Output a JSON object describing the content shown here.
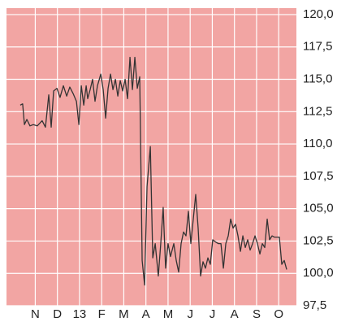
{
  "chart_data": {
    "type": "line",
    "x": [
      -0.18,
      -0.07,
      0.01,
      0.12,
      0.26,
      0.41,
      0.59,
      0.81,
      0.96,
      1.11,
      1.22,
      1.33,
      1.48,
      1.62,
      1.77,
      1.92,
      2.06,
      2.21,
      2.36,
      2.47,
      2.58,
      2.69,
      2.8,
      2.87,
      2.98,
      3.09,
      3.2,
      3.31,
      3.46,
      3.57,
      3.68,
      3.79,
      3.9,
      4.01,
      4.12,
      4.23,
      4.34,
      4.45,
      4.56,
      4.67,
      4.78,
      4.89,
      5.0,
      5.11,
      5.22,
      5.33,
      5.44,
      5.55,
      5.7,
      5.81,
      5.92,
      6.06,
      6.17,
      6.28,
      6.39,
      6.5,
      6.61,
      6.76,
      6.87,
      6.98,
      7.09,
      7.2,
      7.31,
      7.42,
      7.53,
      7.64,
      7.75,
      7.86,
      7.97,
      8.08,
      8.19,
      8.3,
      8.41,
      8.52,
      8.67,
      8.78,
      8.89,
      9.0,
      9.11,
      9.22,
      9.33,
      9.44,
      9.55,
      9.66,
      9.77,
      9.88,
      9.99,
      10.1,
      10.21,
      10.32,
      10.43,
      10.54,
      10.65,
      10.76,
      10.87,
      10.98,
      11.09,
      11.2,
      11.31,
      11.42,
      11.53,
      11.64,
      11.75,
      11.86
    ],
    "series": [
      {
        "color": "#333333",
        "values": [
          113.0,
          113.1,
          111.5,
          111.9,
          111.4,
          111.5,
          111.4,
          111.8,
          111.3,
          113.8,
          111.3,
          114.1,
          114.3,
          113.6,
          114.5,
          113.7,
          114.4,
          113.9,
          113.3,
          111.5,
          114.5,
          113.0,
          114.5,
          113.5,
          114.2,
          115.0,
          113.3,
          114.5,
          115.4,
          114.2,
          112.0,
          114.3,
          115.4,
          114.2,
          115.0,
          113.7,
          114.9,
          114.1,
          115.0,
          113.5,
          116.7,
          114.2,
          116.7,
          114.3,
          115.2,
          101.0,
          99.1,
          106.7,
          109.8,
          101.2,
          102.3,
          99.8,
          102.3,
          105.1,
          100.4,
          102.3,
          101.3,
          102.3,
          101.0,
          100.1,
          102.3,
          103.2,
          102.9,
          104.8,
          102.3,
          104.2,
          106.1,
          103.5,
          99.8,
          100.9,
          100.4,
          101.2,
          100.7,
          102.6,
          102.4,
          102.3,
          102.3,
          100.4,
          102.3,
          102.9,
          104.2,
          103.5,
          103.8,
          102.9,
          101.7,
          102.9,
          102.0,
          102.6,
          101.8,
          102.3,
          102.9,
          102.3,
          101.5,
          102.3,
          102.0,
          104.2,
          102.6,
          102.9,
          102.8,
          102.8,
          102.8,
          100.7,
          101.0,
          100.3
        ]
      }
    ],
    "xlim": [
      -0.8,
      12.3
    ],
    "xticks": [
      {
        "value": 0.5,
        "label": "N"
      },
      {
        "value": 1.5,
        "label": "D"
      },
      {
        "value": 2.5,
        "label": "13"
      },
      {
        "value": 3.5,
        "label": "F"
      },
      {
        "value": 4.5,
        "label": "M"
      },
      {
        "value": 5.5,
        "label": "A"
      },
      {
        "value": 6.5,
        "label": "M"
      },
      {
        "value": 7.5,
        "label": "J"
      },
      {
        "value": 8.5,
        "label": "J"
      },
      {
        "value": 9.5,
        "label": "A"
      },
      {
        "value": 10.5,
        "label": "S"
      },
      {
        "value": 11.5,
        "label": "O"
      }
    ],
    "ylim": [
      97.5,
      120.5
    ],
    "yticks": [
      {
        "value": 97.5,
        "label": "97,5"
      },
      {
        "value": 100,
        "label": "100,0"
      },
      {
        "value": 102.5,
        "label": "102,5"
      },
      {
        "value": 105,
        "label": "105,0"
      },
      {
        "value": 107.5,
        "label": "107,5"
      },
      {
        "value": 110,
        "label": "110,0"
      },
      {
        "value": 112.5,
        "label": "112,5"
      },
      {
        "value": 115,
        "label": "115,0"
      },
      {
        "value": 117.5,
        "label": "117,5"
      },
      {
        "value": 120,
        "label": "120,0"
      }
    ],
    "grid": true,
    "background": "#f2a5a3"
  }
}
